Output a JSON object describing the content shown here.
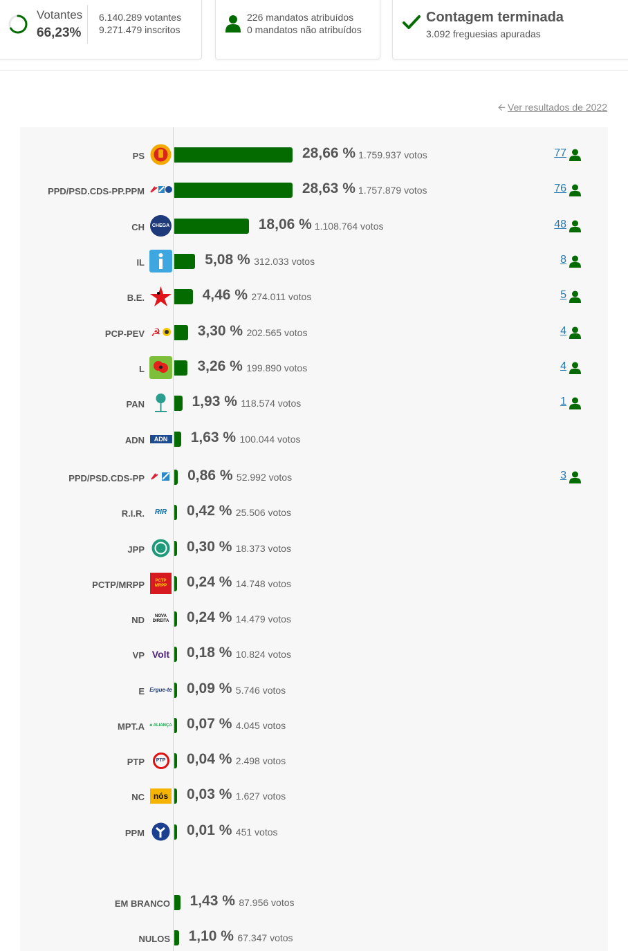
{
  "summary": {
    "voters_label": "Votantes",
    "turnout_pct": "66,23%",
    "turnout_fraction": 0.6623,
    "voters_count": "6.140.289 votantes",
    "registered_count": "9.271.479 inscritos",
    "seats_assigned": "226 mandatos atribuídos",
    "seats_unassigned": "0 mandatos não atribuídos",
    "count_title": "Contagem terminada",
    "parishes": "3.092 freguesias apuradas"
  },
  "previous_link": "Ver resultados de 2022",
  "colors": {
    "bar": "#046b00",
    "link": "#2a7ab0",
    "icon": "#046b00"
  },
  "chart_data": {
    "type": "bar",
    "orientation": "horizontal",
    "categories": [
      "PS",
      "PPD/PSD.CDS-PP.PPM",
      "CH",
      "IL",
      "B.E.",
      "PCP-PEV",
      "L",
      "PAN",
      "ADN",
      "PPD/PSD.CDS-PP",
      "R.I.R.",
      "JPP",
      "PCTP/MRPP",
      "ND",
      "VP",
      "E",
      "MPT.A",
      "PTP",
      "NC",
      "PPM",
      "EM BRANCO",
      "NULOS"
    ],
    "values": [
      28.66,
      28.63,
      18.06,
      5.08,
      4.46,
      3.3,
      3.26,
      1.93,
      1.63,
      0.86,
      0.42,
      0.3,
      0.24,
      0.24,
      0.18,
      0.09,
      0.07,
      0.04,
      0.03,
      0.01,
      1.43,
      1.1
    ],
    "pct_labels": [
      "28,66 %",
      "28,63 %",
      "18,06 %",
      "5,08 %",
      "4,46 %",
      "3,30 %",
      "3,26 %",
      "1,93 %",
      "1,63 %",
      "0,86 %",
      "0,42 %",
      "0,30 %",
      "0,24 %",
      "0,24 %",
      "0,18 %",
      "0,09 %",
      "0,07 %",
      "0,04 %",
      "0,03 %",
      "0,01 %",
      "1,43 %",
      "1,10 %"
    ],
    "votes": [
      "1.759.937 votos",
      "1.757.879 votos",
      "1.108.764 votos",
      "312.033 votos",
      "274.011 votos",
      "202.565 votos",
      "199.890 votos",
      "118.574 votos",
      "100.044 votos",
      "52.992 votos",
      "25.506 votos",
      "18.373 votos",
      "14.748 votos",
      "14.479 votos",
      "10.824 votos",
      "5.746 votos",
      "4.045 votos",
      "2.498 votos",
      "1.627 votos",
      "451 votos",
      "87.956 votos",
      "67.347 votos"
    ],
    "seats": [
      "77",
      "76",
      "48",
      "8",
      "5",
      "4",
      "4",
      "1",
      "",
      "3",
      "",
      "",
      "",
      "",
      "",
      "",
      "",
      "",
      "",
      "",
      "",
      ""
    ],
    "logos": [
      "ps-logo",
      "ad-coalition-logo",
      "chega-logo",
      "il-logo",
      "be-star-logo",
      "cdu-logo",
      "livre-poppy-logo",
      "pan-tree-logo",
      "adn-logo",
      "psd-cds-logo",
      "rir-logo",
      "jpp-logo",
      "pctp-logo",
      "nova-direita-logo",
      "volt-logo",
      "ergue-te-logo",
      "alianca-logo",
      "ptp-logo",
      "nds-logo",
      "ppm-logo",
      "",
      ""
    ],
    "logo_text": [
      "",
      "",
      "CHEGA",
      "i",
      "",
      "",
      "",
      "",
      "ADN",
      "",
      "RIR",
      "",
      "PCTP MRPP",
      "NOVA DIREITA",
      "Volt",
      "Ergue-te",
      "ALIANÇA",
      "PTP",
      "nós",
      "",
      "",
      ""
    ]
  }
}
